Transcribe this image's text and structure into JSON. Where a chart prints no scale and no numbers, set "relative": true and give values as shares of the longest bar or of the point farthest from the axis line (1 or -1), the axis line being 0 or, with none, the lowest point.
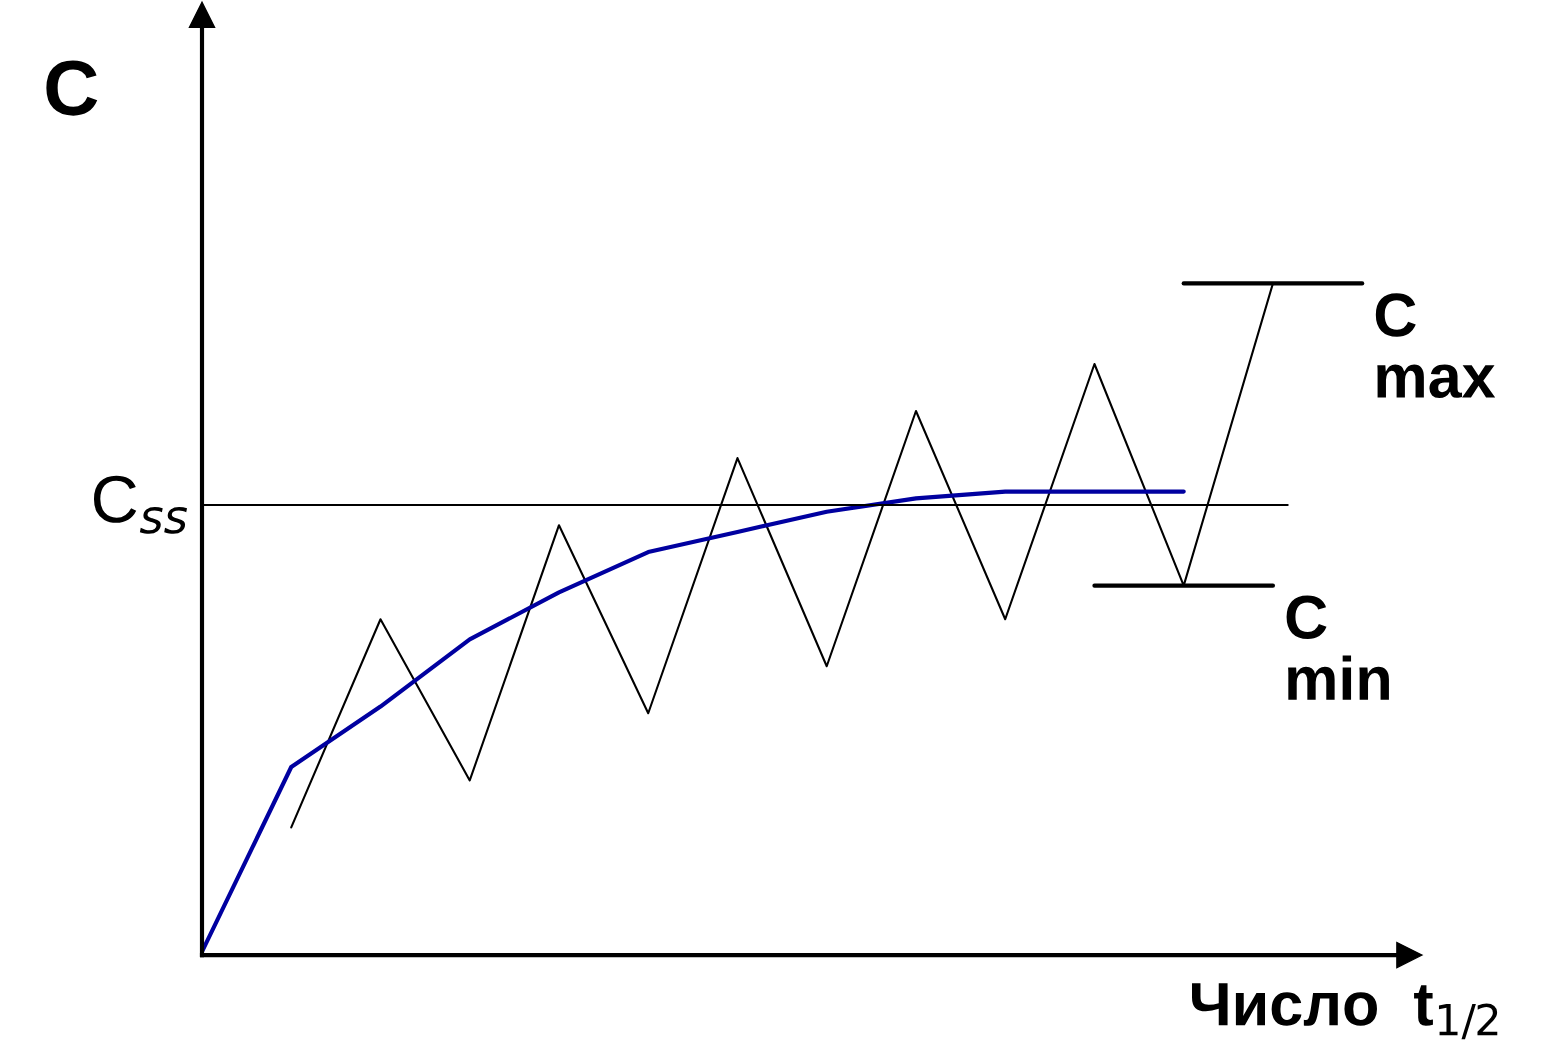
{
  "chart_data": {
    "type": "line",
    "relative": true,
    "ylabel": "C",
    "xlabel": "Число  t$_{1/2}$",
    "categories": [
      null,
      null,
      null,
      null,
      null,
      null,
      null,
      null,
      null,
      null,
      null,
      null,
      null,
      null
    ],
    "series": [
      {
        "color": "#000000",
        "values": [
          null,
          0.19,
          0.5,
          0.26,
          0.64,
          0.36,
          0.74,
          0.43,
          0.81,
          0.5,
          0.88,
          0.55,
          1.0,
          null
        ]
      },
      {
        "color": "#0000a0",
        "values": [
          0.005,
          0.28,
          0.37,
          0.47,
          0.54,
          0.6,
          0.63,
          0.66,
          0.68,
          0.69,
          0.69,
          0.69,
          null,
          null
        ]
      },
      {
        "name": "C\nmax",
        "color": "#000000",
        "values": [
          null,
          null,
          null,
          null,
          null,
          null,
          null,
          null,
          null,
          null,
          null,
          1.0,
          1.0,
          1.0
        ]
      },
      {
        "name": "C\nmin",
        "color": "#000000",
        "values": [
          null,
          null,
          null,
          null,
          null,
          null,
          null,
          null,
          null,
          null,
          0.55,
          0.55,
          0.55,
          null
        ]
      }
    ],
    "ref_lines": [
      {
        "axis": "y",
        "value": 0.67,
        "label": "C$_{ss}$",
        "color": "#000000"
      }
    ],
    "legend": false,
    "marker": "none",
    "line_style": "solid"
  }
}
